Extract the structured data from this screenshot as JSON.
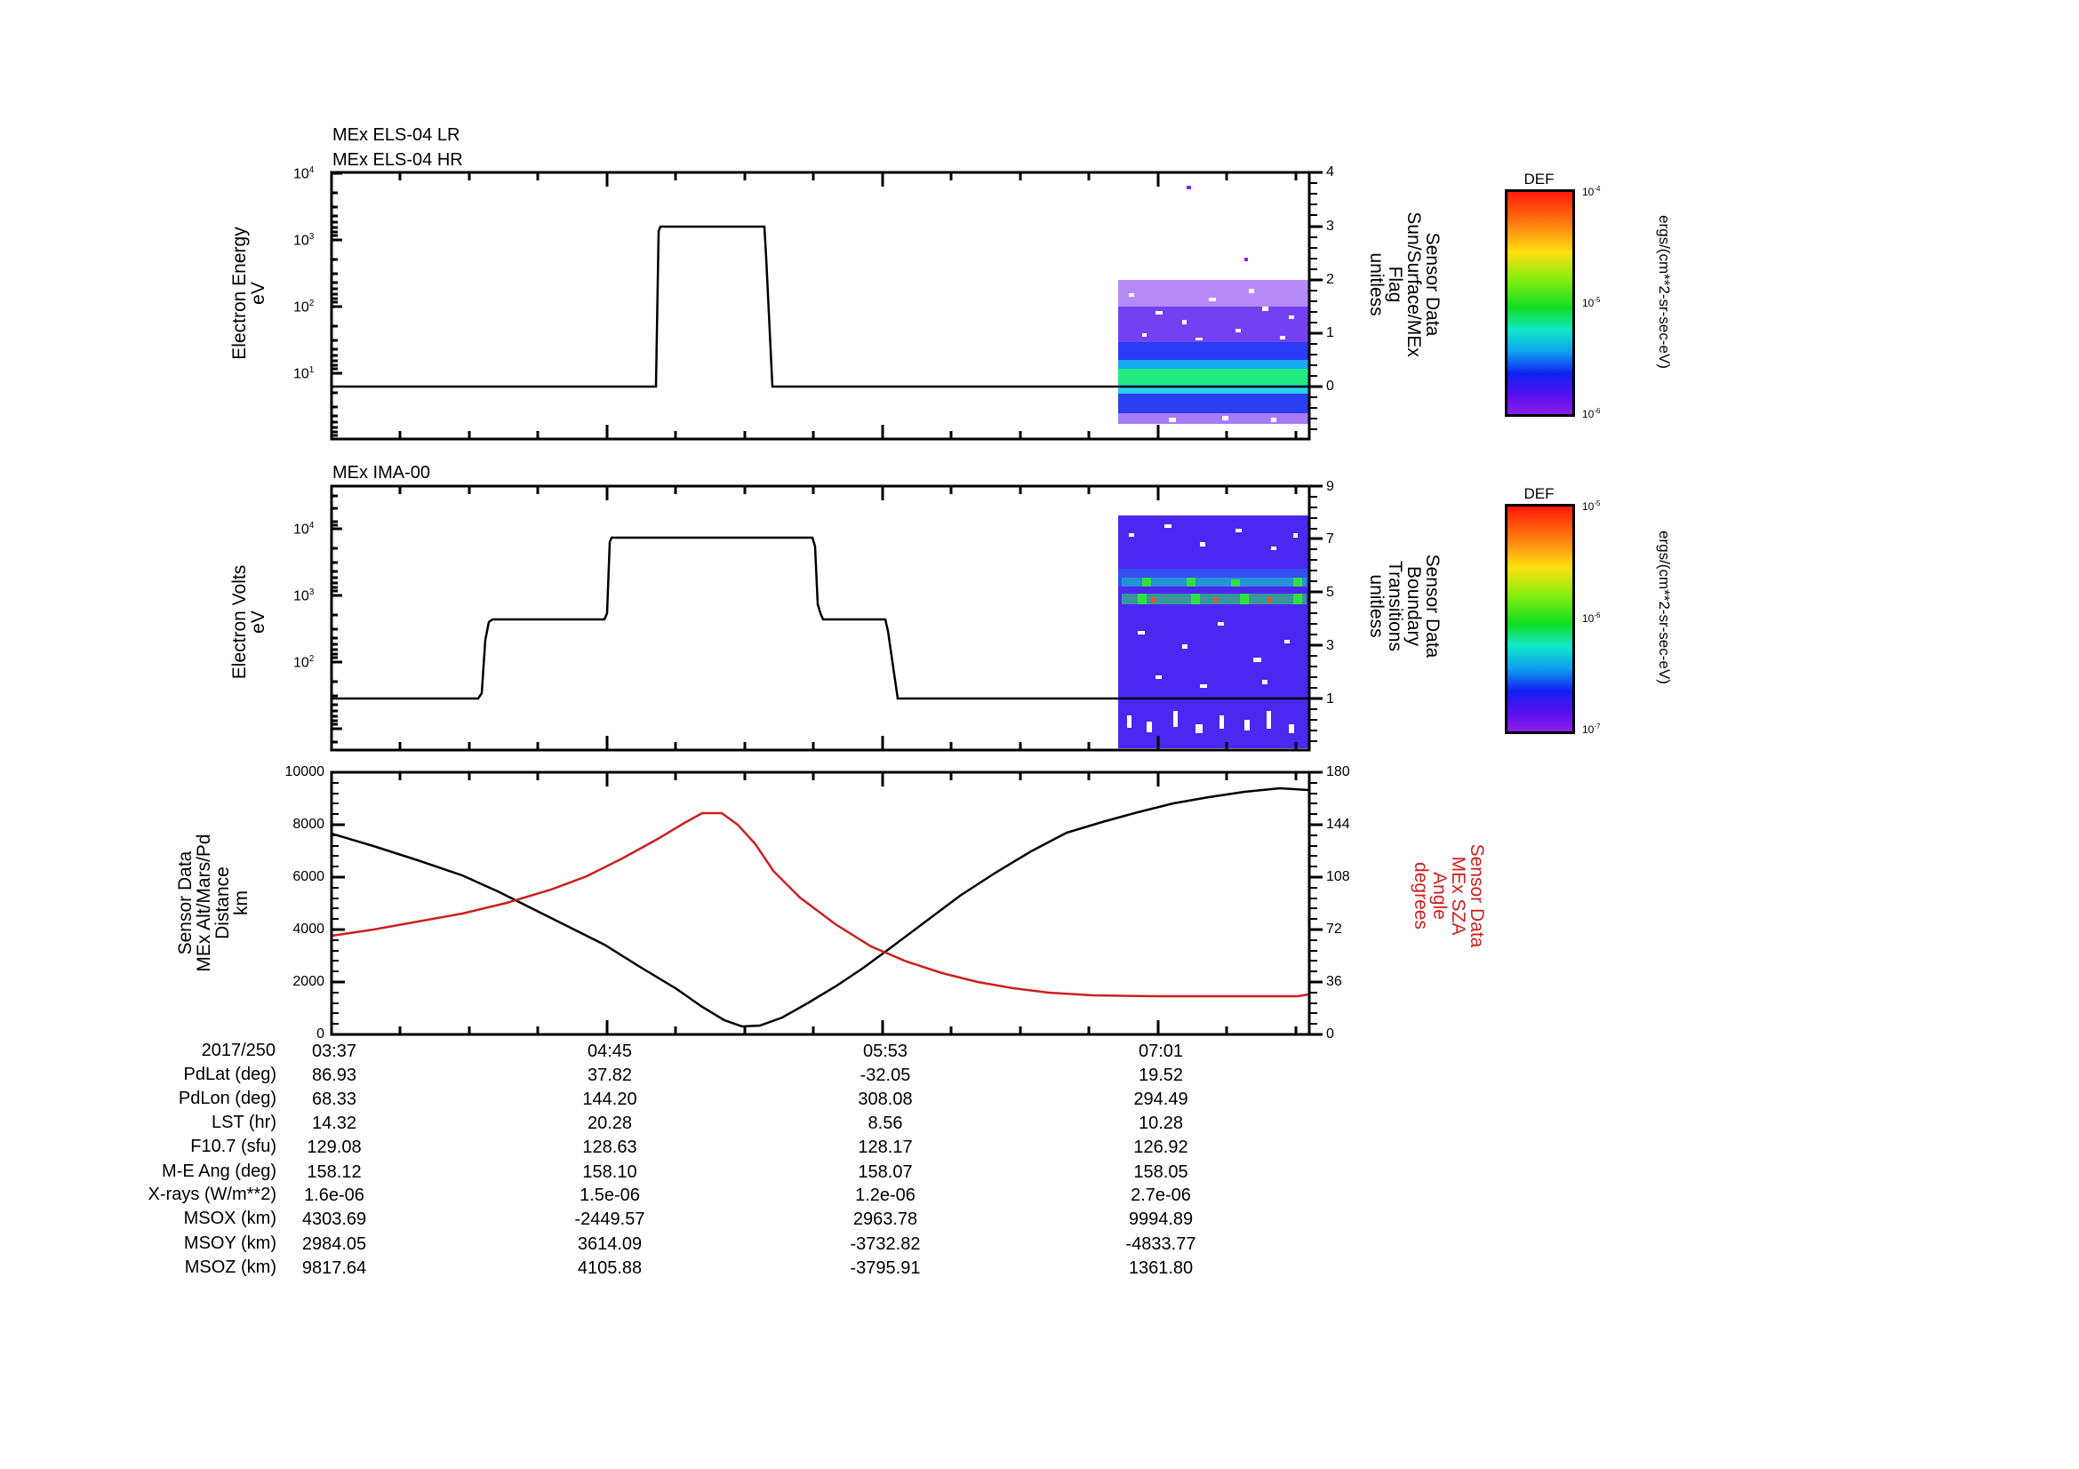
{
  "panels": {
    "els": {
      "titles": [
        "MEx ELS-04 LR",
        "MEx ELS-04 HR"
      ],
      "left_label": "Electron Energy\neV",
      "right_label": "Sensor Data\nSun/Surface/MEx\nFlag\nunitless",
      "left_ticks": [
        "10",
        "10",
        "10",
        "10"
      ],
      "left_exps": [
        "4",
        "3",
        "2",
        "1"
      ],
      "right_ticks": [
        "4",
        "3",
        "2",
        "1",
        "0"
      ],
      "colorbar": {
        "title": "DEF",
        "ticks": [
          "10",
          "10",
          "10"
        ],
        "exps": [
          "-4",
          "-5",
          "-6"
        ],
        "unit": "ergs/(cm**2-sr-sec-eV)"
      }
    },
    "ima": {
      "title": "MEx IMA-00",
      "left_label": "Electron Volts\neV",
      "right_label": "Sensor Data\nBoundary\nTransitions\nunitless",
      "left_ticks": [
        "10",
        "10",
        "10"
      ],
      "left_exps": [
        "4",
        "3",
        "2"
      ],
      "right_ticks": [
        "9",
        "7",
        "5",
        "3",
        "1"
      ],
      "colorbar": {
        "title": "DEF",
        "ticks": [
          "10",
          "10",
          "10"
        ],
        "exps": [
          "-5",
          "-6",
          "-7"
        ],
        "unit": "ergs/(cm**2-sr-sec-eV)"
      }
    },
    "orbit": {
      "left_label": "Sensor Data\nMEx Alt/Mars/Pd\nDistance\nkm",
      "right_label": "Sensor Data\nMEx SZA\nAngle\ndegrees",
      "left_ticks": [
        "10000",
        "8000",
        "6000",
        "4000",
        "2000",
        "0"
      ],
      "right_ticks": [
        "180",
        "144",
        "108",
        "72",
        "36",
        "0"
      ]
    }
  },
  "time_axis": {
    "date": "2017/250",
    "ticks": [
      "03:37",
      "04:45",
      "05:53",
      "07:01"
    ]
  },
  "ephemeris": {
    "rows": [
      {
        "label": "PdLat (deg)",
        "values": [
          "86.93",
          "37.82",
          "-32.05",
          "19.52"
        ]
      },
      {
        "label": "PdLon (deg)",
        "values": [
          "68.33",
          "144.20",
          "308.08",
          "294.49"
        ]
      },
      {
        "label": "LST (hr)",
        "values": [
          "14.32",
          "20.28",
          "8.56",
          "10.28"
        ]
      },
      {
        "label": "F10.7 (sfu)",
        "values": [
          "129.08",
          "128.63",
          "128.17",
          "126.92"
        ]
      },
      {
        "label": "M-E Ang (deg)",
        "values": [
          "158.12",
          "158.10",
          "158.07",
          "158.05"
        ]
      },
      {
        "label": "X-rays (W/m**2)",
        "values": [
          "1.6e-06",
          "1.5e-06",
          "1.2e-06",
          "2.7e-06"
        ]
      },
      {
        "label": "MSOX (km)",
        "values": [
          "4303.69",
          "-2449.57",
          "2963.78",
          "9994.89"
        ]
      },
      {
        "label": "MSOY (km)",
        "values": [
          "2984.05",
          "3614.09",
          "-3732.82",
          "-4833.77"
        ]
      },
      {
        "label": "MSOZ (km)",
        "values": [
          "9817.64",
          "4105.88",
          "-3795.91",
          "1361.80"
        ]
      }
    ]
  },
  "colors": {
    "axis": "#000000",
    "sza": "#cc1f1f",
    "alt": "#000000"
  },
  "chart_data": [
    {
      "type": "line",
      "title": "MEx ELS-04 LR / MEx ELS-04 HR",
      "xlabel": "UT (2017/250)",
      "ylabel": "Electron Energy (eV)",
      "y2label": "Sensor Data Sun/Surface/MEx Flag (unitless)",
      "yscale": "log",
      "ylim": [
        1,
        10000
      ],
      "y2lim": [
        -1,
        4
      ],
      "x": [
        "03:37",
        "04:36",
        "04:37",
        "04:53",
        "04:55",
        "07:38"
      ],
      "series": [
        {
          "name": "Sun/Surface/MEx Flag",
          "axis": "right",
          "values": [
            0,
            0,
            3,
            3,
            0,
            0
          ]
        }
      ],
      "spectrogram": {
        "name": "ELS DEF",
        "x_start": "06:56",
        "x_end": "07:38",
        "energy_band_peak_eV": 7,
        "colorbar_range": [
          1e-06,
          0.0001
        ],
        "colorbar_label": "ergs/(cm**2-sr-sec-eV)"
      }
    },
    {
      "type": "line",
      "title": "MEx IMA-00",
      "ylabel": "Electron Volts (eV)",
      "y2label": "Sensor Data Boundary Transitions (unitless)",
      "yscale": "log",
      "ylim": [
        15,
        40000
      ],
      "y2lim": [
        -1,
        9
      ],
      "x": [
        "03:37",
        "04:11",
        "04:14",
        "04:44",
        "04:45",
        "05:35",
        "05:37",
        "05:50",
        "05:54",
        "07:38"
      ],
      "series": [
        {
          "name": "Boundary Transitions",
          "axis": "right",
          "values": [
            1,
            1,
            4,
            4,
            7,
            7,
            4,
            4,
            1,
            1
          ]
        }
      ],
      "spectrogram": {
        "name": "IMA DEF",
        "x_start": "06:56",
        "x_end": "07:38",
        "bright_bands_right_axis": [
          5,
          6
        ],
        "colorbar_range": [
          1e-07,
          1e-05
        ],
        "colorbar_label": "ergs/(cm**2-sr-sec-eV)"
      }
    },
    {
      "type": "line",
      "title": "MEx Altitude and SZA",
      "ylabel": "Sensor Data MEx Alt/Mars/Pd Distance (km)",
      "y2label": "Sensor Data MEx SZA Angle (degrees)",
      "ylim": [
        0,
        10000
      ],
      "y2lim": [
        0,
        180
      ],
      "categories": [
        "03:37",
        "04:45",
        "05:53",
        "07:01"
      ],
      "x": [
        "03:37",
        "04:00",
        "04:20",
        "04:45",
        "05:05",
        "05:13",
        "05:20",
        "05:40",
        "05:53",
        "06:10",
        "06:30",
        "07:01",
        "07:20",
        "07:38"
      ],
      "series": [
        {
          "name": "Altitude (km)",
          "axis": "left",
          "color": "#000000",
          "values": [
            7660,
            6300,
            4900,
            2700,
            900,
            320,
            300,
            1700,
            3000,
            4800,
            6500,
            8000,
            8800,
            9330
          ]
        },
        {
          "name": "SZA (deg)",
          "axis": "right",
          "color": "#cc1f1f",
          "values": [
            67.7,
            78,
            89,
            115,
            150,
            152.5,
            148,
            102,
            60,
            45,
            33,
            26.5,
            26,
            27.5
          ]
        }
      ]
    }
  ]
}
